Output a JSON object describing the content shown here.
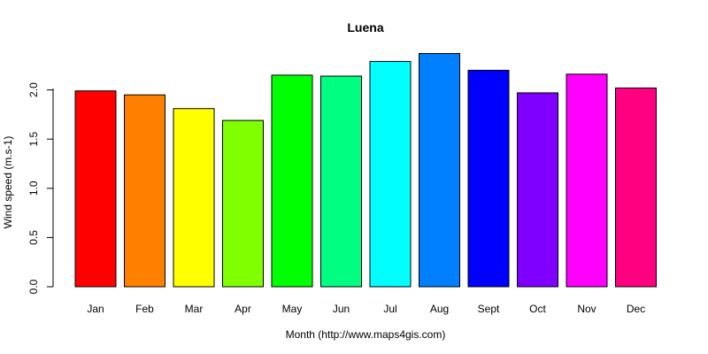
{
  "chart_data": {
    "type": "bar",
    "title": "Luena",
    "xlabel": "Month (http://www.maps4gis.com)",
    "ylabel": "Wind speed (m.s-1)",
    "categories": [
      "Jan",
      "Feb",
      "Mar",
      "Apr",
      "May",
      "Jun",
      "Jul",
      "Aug",
      "Sept",
      "Oct",
      "Nov",
      "Dec"
    ],
    "values": [
      1.99,
      1.95,
      1.81,
      1.69,
      2.15,
      2.14,
      2.29,
      2.37,
      2.2,
      1.97,
      2.16,
      2.02
    ],
    "colors": [
      "#FF0000",
      "#FF8000",
      "#FFFF00",
      "#80FF00",
      "#00FF00",
      "#00FF80",
      "#00FFFF",
      "#0080FF",
      "#0000FF",
      "#8000FF",
      "#FF00FF",
      "#FF0080"
    ],
    "y_ticks": [
      "0.0",
      "0.5",
      "1.0",
      "1.5",
      "2.0"
    ],
    "ylim": [
      0,
      2.37
    ],
    "grid": false,
    "legend": "none"
  }
}
